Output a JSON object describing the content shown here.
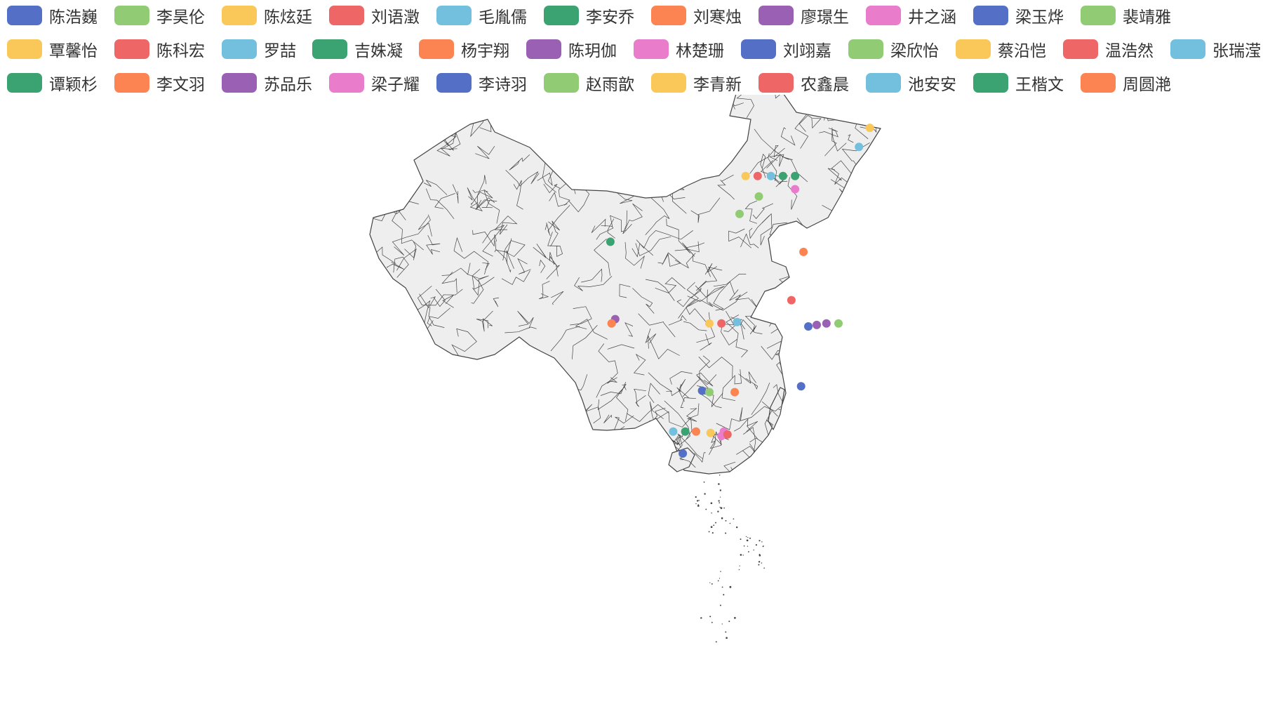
{
  "legend": {
    "items": [
      {
        "name": "陈浩巍",
        "color": "#5470c6"
      },
      {
        "name": "李昊伦",
        "color": "#91cc75"
      },
      {
        "name": "陈炫廷",
        "color": "#fac858"
      },
      {
        "name": "刘语澂",
        "color": "#ee6666"
      },
      {
        "name": "毛胤儒",
        "color": "#73c0de"
      },
      {
        "name": "李安乔",
        "color": "#3ba272"
      },
      {
        "name": "刘寒烛",
        "color": "#fc8452"
      },
      {
        "name": "廖璟生",
        "color": "#9a60b4"
      },
      {
        "name": "井之涵",
        "color": "#ea7ccc"
      },
      {
        "name": "梁玉烨",
        "color": "#5470c6"
      },
      {
        "name": "裴靖雅",
        "color": "#91cc75"
      },
      {
        "name": "覃馨怡",
        "color": "#fac858"
      },
      {
        "name": "陈科宏",
        "color": "#ee6666"
      },
      {
        "name": "罗喆",
        "color": "#73c0de"
      },
      {
        "name": "吉姝凝",
        "color": "#3ba272"
      },
      {
        "name": "杨宇翔",
        "color": "#fc8452"
      },
      {
        "name": "陈玥伽",
        "color": "#9a60b4"
      },
      {
        "name": "林楚珊",
        "color": "#ea7ccc"
      },
      {
        "name": "刘翊嘉",
        "color": "#5470c6"
      },
      {
        "name": "梁欣怡",
        "color": "#91cc75"
      },
      {
        "name": "蔡沿恺",
        "color": "#fac858"
      },
      {
        "name": "温浩然",
        "color": "#ee6666"
      },
      {
        "name": "张瑞滢",
        "color": "#73c0de"
      },
      {
        "name": "谭颖杉",
        "color": "#3ba272"
      },
      {
        "name": "李文羽",
        "color": "#fc8452"
      },
      {
        "name": "苏品乐",
        "color": "#9a60b4"
      },
      {
        "name": "梁子耀",
        "color": "#ea7ccc"
      },
      {
        "name": "李诗羽",
        "color": "#5470c6"
      },
      {
        "name": "赵雨歆",
        "color": "#91cc75"
      },
      {
        "name": "李青新",
        "color": "#fac858"
      },
      {
        "name": "农鑫晨",
        "color": "#ee6666"
      },
      {
        "name": "池安安",
        "color": "#73c0de"
      },
      {
        "name": "王楷文",
        "color": "#3ba272"
      },
      {
        "name": "周圆滟",
        "color": "#fc8452"
      }
    ]
  },
  "map": {
    "fill": "#eeeeee",
    "border": "#444444",
    "region": "China"
  },
  "chart_data": {
    "type": "scatter",
    "map": "China (county level)",
    "series": [
      {
        "name": "陈浩巍",
        "coord": [
          120.2,
          30.3
        ]
      },
      {
        "name": "李昊伦",
        "coord": [
          114.5,
          38.0
        ]
      },
      {
        "name": "陈炫廷",
        "coord": [
          125.3,
          43.9
        ]
      },
      {
        "name": "刘语澂",
        "coord": [
          118.8,
          32.1
        ]
      },
      {
        "name": "毛胤儒",
        "coord": [
          114.3,
          30.6
        ]
      },
      {
        "name": "李安乔",
        "coord": [
          103.8,
          36.1
        ]
      },
      {
        "name": "刘寒烛",
        "coord": [
          114.1,
          25.8
        ]
      },
      {
        "name": "廖璟生",
        "coord": [
          120.9,
          30.4
        ]
      },
      {
        "name": "井之涵",
        "coord": [
          113.2,
          23.1
        ]
      },
      {
        "name": "梁玉烨",
        "coord": [
          111.4,
          25.9
        ]
      },
      {
        "name": "裴靖雅",
        "coord": [
          112.0,
          25.8
        ]
      },
      {
        "name": "覃馨怡",
        "coord": [
          112.1,
          23.0
        ]
      },
      {
        "name": "陈科宏",
        "coord": [
          113.0,
          30.5
        ]
      },
      {
        "name": "罗喆",
        "coord": [
          109.0,
          23.1
        ]
      },
      {
        "name": "吉姝凝",
        "coord": [
          110.0,
          23.1
        ]
      },
      {
        "name": "杨宇翔",
        "coord": [
          119.8,
          35.4
        ]
      },
      {
        "name": "陈玥伽",
        "coord": [
          104.2,
          30.8
        ]
      },
      {
        "name": "林楚珊",
        "coord": [
          119.1,
          39.7
        ]
      },
      {
        "name": "刘翊嘉",
        "coord": [
          109.8,
          21.6
        ]
      },
      {
        "name": "梁欣怡",
        "coord": [
          116.1,
          39.2
        ]
      },
      {
        "name": "蔡沿恺",
        "coord": [
          115.0,
          40.6
        ]
      },
      {
        "name": "温浩然",
        "coord": [
          116.0,
          40.6
        ]
      },
      {
        "name": "张瑞滢",
        "coord": [
          117.1,
          40.6
        ]
      },
      {
        "name": "谭颖杉",
        "coord": [
          118.1,
          40.6
        ]
      },
      {
        "name": "李文羽",
        "coord": [
          110.9,
          23.1
        ]
      },
      {
        "name": "苏品乐",
        "coord": [
          121.7,
          30.5
        ]
      },
      {
        "name": "梁子耀",
        "coord": [
          113.0,
          22.8
        ]
      },
      {
        "name": "李诗羽",
        "coord": [
          119.6,
          26.2
        ]
      },
      {
        "name": "赵雨歆",
        "coord": [
          122.7,
          30.5
        ]
      },
      {
        "name": "李青新",
        "coord": [
          112.0,
          30.5
        ]
      },
      {
        "name": "农鑫晨",
        "coord": [
          113.5,
          22.9
        ]
      },
      {
        "name": "池安安",
        "coord": [
          124.4,
          42.6
        ]
      },
      {
        "name": "王楷文",
        "coord": [
          119.1,
          40.6
        ]
      },
      {
        "name": "周圆滟",
        "coord": [
          103.9,
          30.5
        ]
      }
    ]
  }
}
